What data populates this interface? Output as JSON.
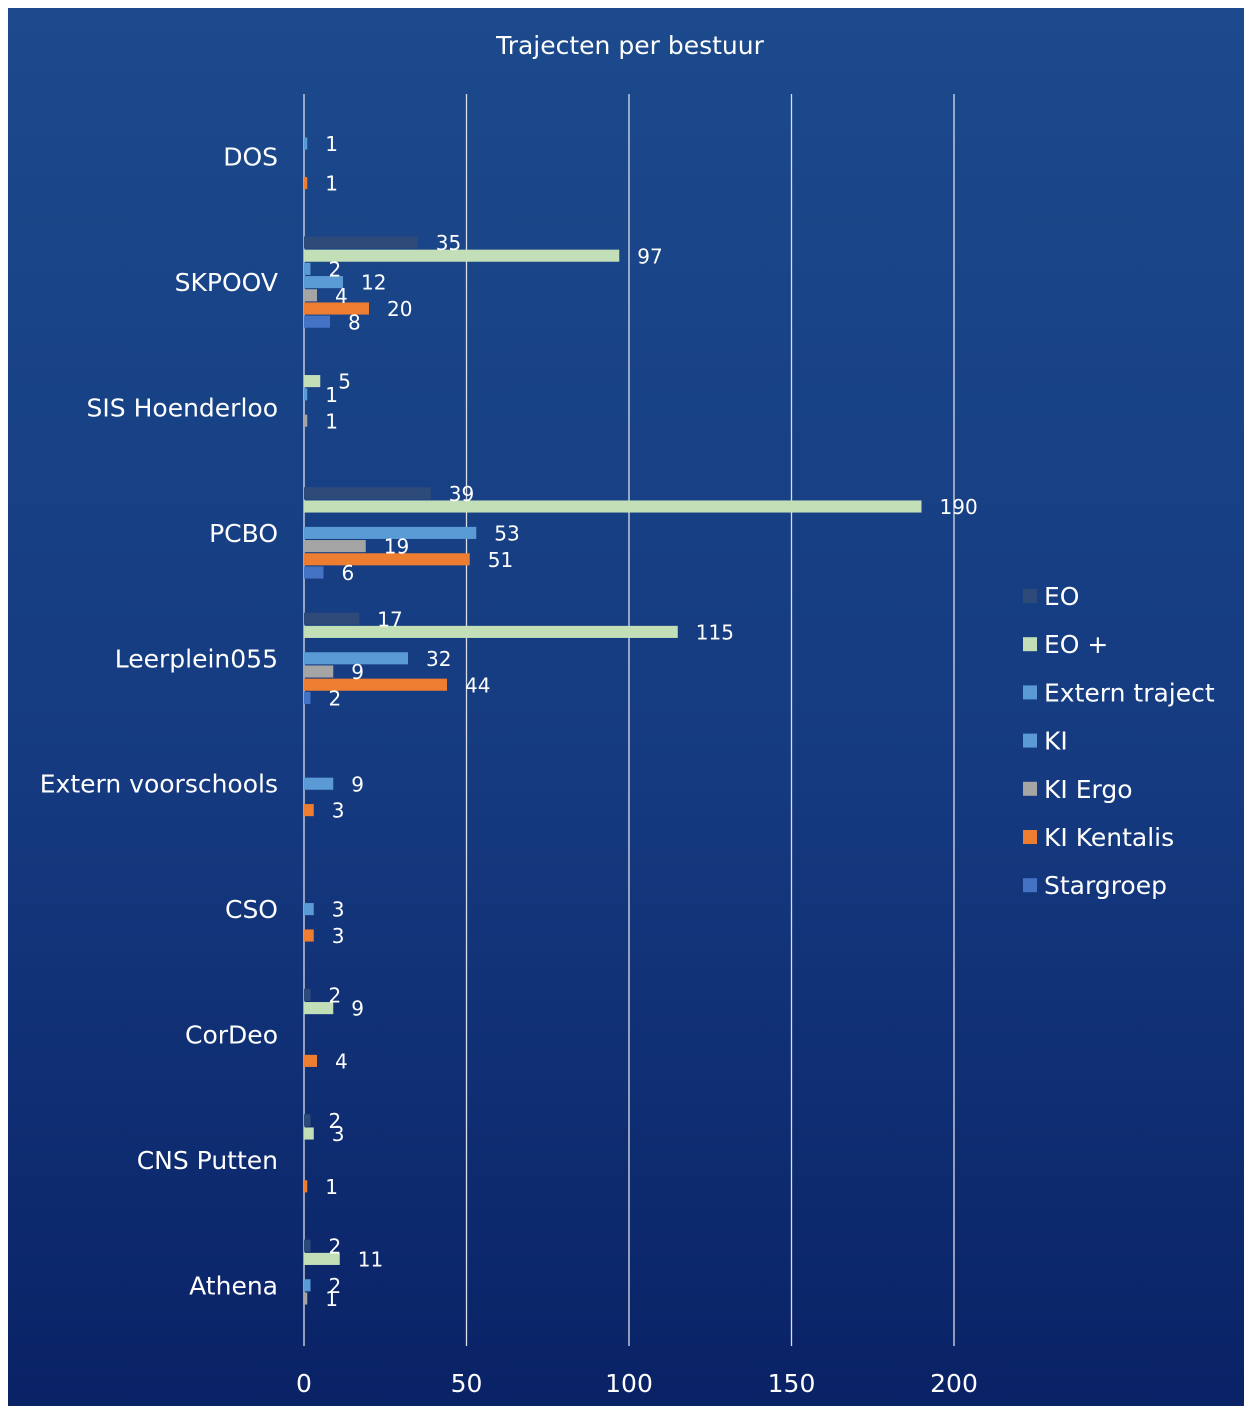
{
  "chart_data": {
    "type": "bar",
    "orientation": "horizontal",
    "title": "Trajecten per bestuur",
    "categories": [
      "DOS",
      "SKPOOV",
      "SIS Hoenderloo",
      "PCBO",
      "Leerplein055",
      "Extern voorschools",
      "CSO",
      "CorDeo",
      "CNS Putten",
      "Athena"
    ],
    "series": [
      {
        "name": "EO",
        "color": "#2e4a78",
        "values": [
          null,
          35,
          null,
          39,
          17,
          null,
          null,
          2,
          2,
          2
        ]
      },
      {
        "name": "EO +",
        "color": "#c3dfb8",
        "values": [
          null,
          97,
          5,
          190,
          115,
          null,
          null,
          9,
          3,
          11
        ]
      },
      {
        "name": "Extern traject",
        "color": "#5b9bd5",
        "values": [
          1,
          2,
          1,
          null,
          null,
          null,
          null,
          null,
          null,
          null
        ]
      },
      {
        "name": "KI",
        "color": "#5b9bd5",
        "values": [
          null,
          12,
          null,
          53,
          32,
          9,
          3,
          null,
          null,
          2
        ]
      },
      {
        "name": "KI Ergo",
        "color": "#a5a5a5",
        "values": [
          null,
          4,
          1,
          19,
          9,
          null,
          null,
          null,
          null,
          1
        ]
      },
      {
        "name": "KI Kentalis",
        "color": "#ed7d31",
        "values": [
          1,
          20,
          null,
          51,
          44,
          3,
          3,
          4,
          1,
          null
        ]
      },
      {
        "name": "Stargroep",
        "color": "#4472c4",
        "values": [
          null,
          8,
          null,
          6,
          2,
          null,
          null,
          null,
          null,
          null
        ]
      }
    ],
    "xlim": [
      0,
      200
    ],
    "xticks": [
      0,
      50,
      100,
      150,
      200
    ],
    "grid": "vertical major gridlines",
    "legend": "right",
    "background": "#0e2a6e"
  }
}
